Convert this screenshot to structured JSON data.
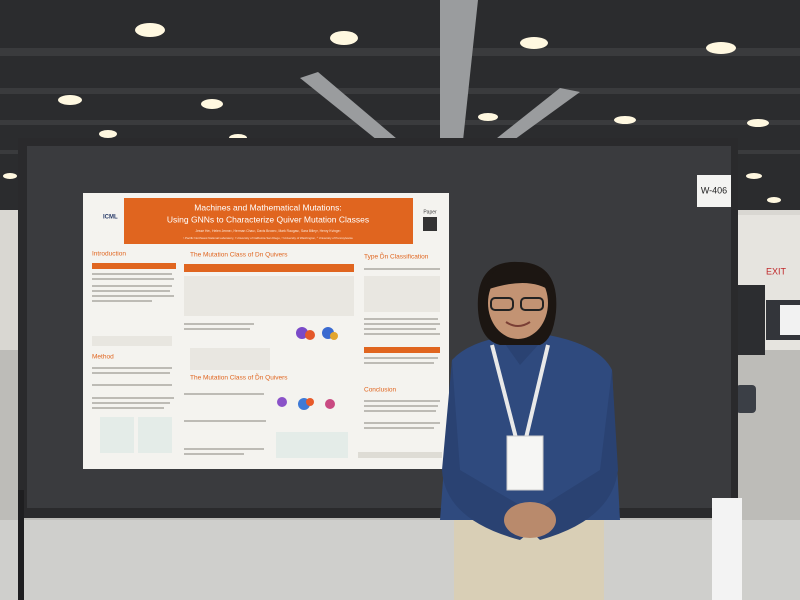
{
  "poster": {
    "logo": "ICML",
    "title": "Machines and Mathematical Mutations:",
    "subtitle": "Using GNNs to Characterize Quiver Mutation Classes",
    "authors": "Jesse He¹, Helen Jenne¹, Herman Chau², Davis Brown¹, Mark Raugas¹, Sara Billey³, Henry Kvinge¹",
    "affiliations": "¹ Pacific Northwest National Laboratory, ² University of California San Diego, ³ University of Washington, ⁴ University of Pennsylvania",
    "paper_label": "Paper",
    "sections": [
      "Introduction",
      "Method",
      "The Mutation Class of Dn Quivers",
      "The Mutation Class of D̃n Quivers",
      "Type D̃n Classification",
      "Conclusion"
    ]
  },
  "booth_sign": "W-406",
  "exit_sign": "EXIT"
}
